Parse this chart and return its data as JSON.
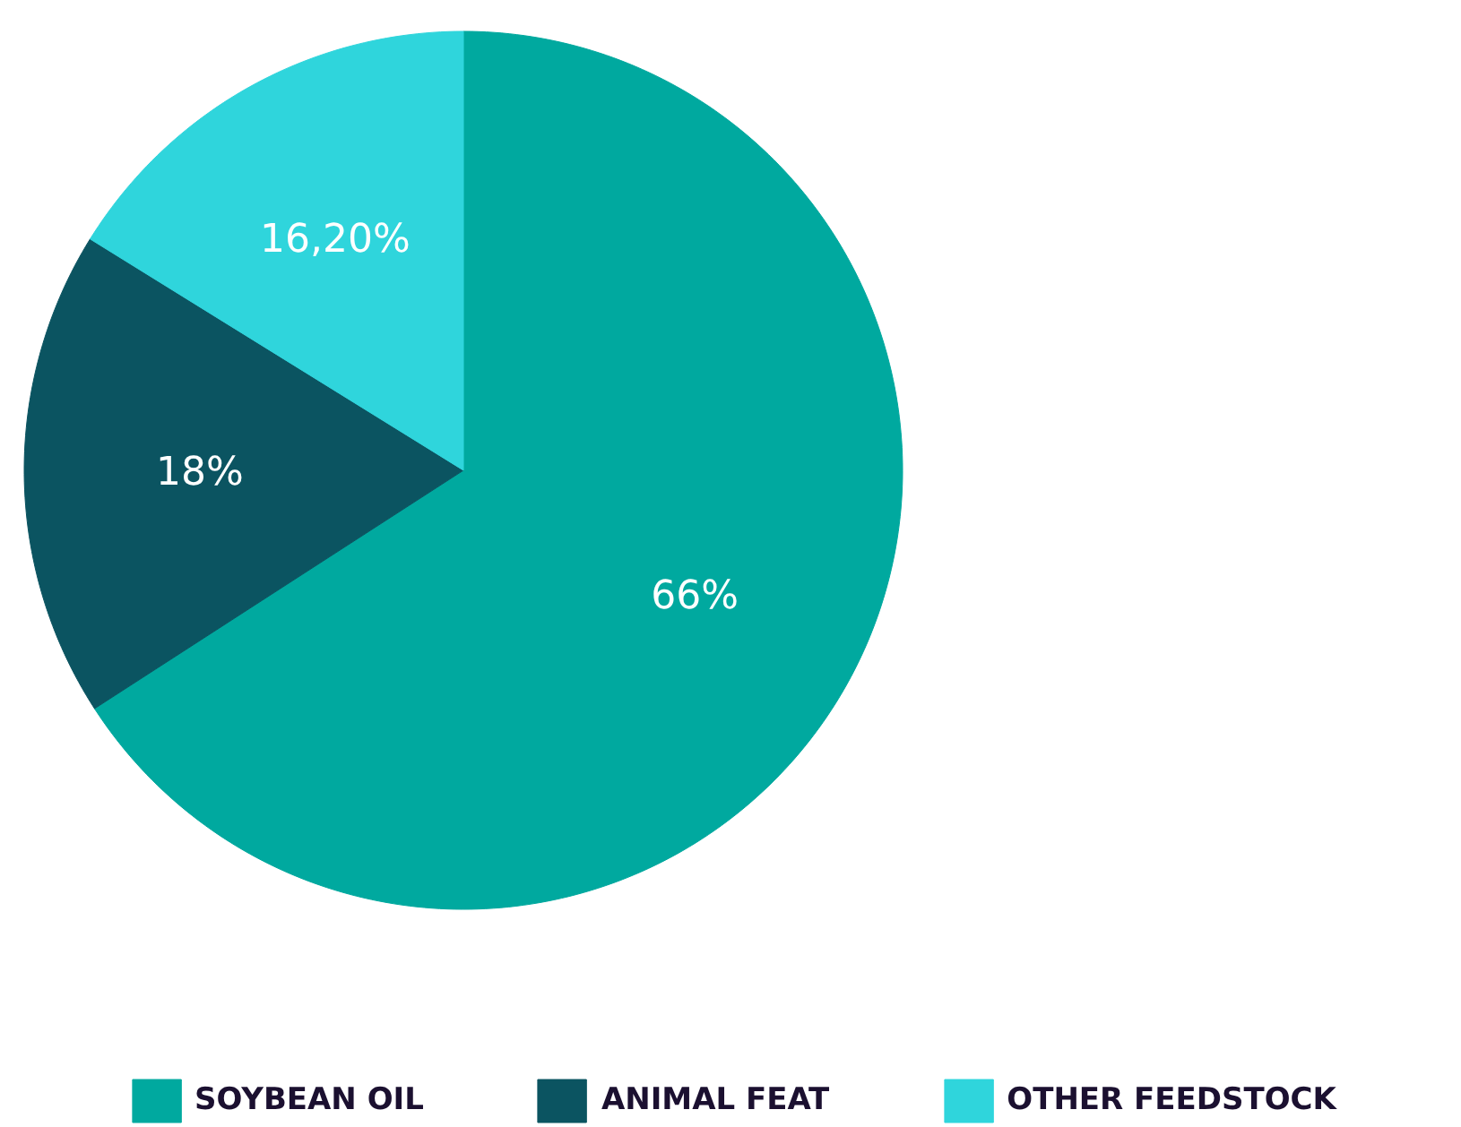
{
  "chart_data": {
    "type": "pie",
    "categories": [
      "SOYBEAN OIL",
      "ANIMAL FEAT",
      "OTHER FEEDSTOCK"
    ],
    "values": [
      66,
      18,
      16.2
    ],
    "colors": [
      "#00a99f",
      "#0b5461",
      "#2fd5dc"
    ],
    "value_labels": [
      "66%",
      "18%",
      "16,20%"
    ],
    "legend": "bottom"
  }
}
